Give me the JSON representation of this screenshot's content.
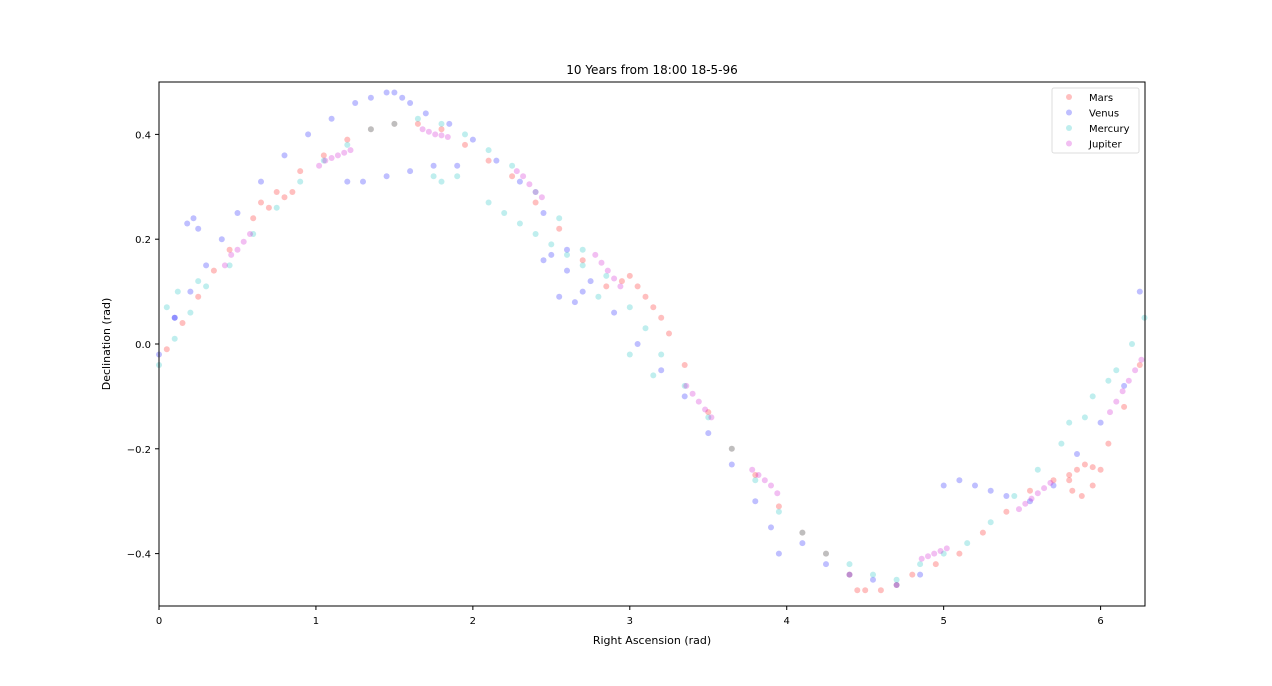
{
  "chart_data": {
    "type": "scatter",
    "title": "10 Years from  18:00 18-5-96",
    "xlabel": "Right Ascension (rad)",
    "ylabel": "Declination (rad)",
    "xlim": [
      0,
      6.283
    ],
    "ylim": [
      -0.5,
      0.5
    ],
    "xticks": [
      0,
      1,
      2,
      3,
      4,
      5,
      6
    ],
    "xtick_labels": [
      "0",
      "1",
      "2",
      "3",
      "4",
      "5",
      "6"
    ],
    "yticks": [
      -0.4,
      -0.2,
      0.0,
      0.2,
      0.4
    ],
    "ytick_labels": [
      "−0.4",
      "−0.2",
      "0.0",
      "0.2",
      "0.4"
    ],
    "grid": false,
    "legend_position": "top-right",
    "series": [
      {
        "name": "Mars",
        "color": "#ff0000",
        "x": [
          0.05,
          0.15,
          0.25,
          0.35,
          0.45,
          0.6,
          0.75,
          0.9,
          1.05,
          1.2,
          1.35,
          1.5,
          1.65,
          1.8,
          1.95,
          2.1,
          2.25,
          2.4,
          2.55,
          2.7,
          2.85,
          2.95,
          3.0,
          3.05,
          3.1,
          3.15,
          3.2,
          3.25,
          3.35,
          3.5,
          3.65,
          3.8,
          3.95,
          4.1,
          4.25,
          4.4,
          4.45,
          4.5,
          4.6,
          4.7,
          4.8,
          4.95,
          5.1,
          5.25,
          5.4,
          5.55,
          5.7,
          5.8,
          5.85,
          5.9,
          5.95,
          6.0,
          5.95,
          5.88,
          5.82,
          5.8,
          6.05,
          6.15,
          6.25,
          0.65,
          0.7,
          0.8,
          0.85
        ],
        "y": [
          -0.01,
          0.04,
          0.09,
          0.14,
          0.18,
          0.24,
          0.29,
          0.33,
          0.36,
          0.39,
          0.41,
          0.42,
          0.42,
          0.41,
          0.38,
          0.35,
          0.32,
          0.27,
          0.22,
          0.16,
          0.11,
          0.12,
          0.13,
          0.11,
          0.09,
          0.07,
          0.05,
          0.02,
          -0.04,
          -0.13,
          -0.2,
          -0.25,
          -0.31,
          -0.36,
          -0.4,
          -0.44,
          -0.47,
          -0.47,
          -0.47,
          -0.46,
          -0.44,
          -0.42,
          -0.4,
          -0.36,
          -0.32,
          -0.28,
          -0.26,
          -0.25,
          -0.24,
          -0.23,
          -0.235,
          -0.24,
          -0.27,
          -0.29,
          -0.28,
          -0.26,
          -0.19,
          -0.12,
          -0.04,
          0.27,
          0.26,
          0.28,
          0.29
        ]
      },
      {
        "name": "Venus",
        "color": "#0000ff",
        "x": [
          0.0,
          0.1,
          0.2,
          0.3,
          0.4,
          0.5,
          0.65,
          0.8,
          0.95,
          1.1,
          1.25,
          1.35,
          1.45,
          1.5,
          1.55,
          1.6,
          1.7,
          1.85,
          2.0,
          2.15,
          2.3,
          2.45,
          2.6,
          2.75,
          2.9,
          3.05,
          3.2,
          3.35,
          3.5,
          3.65,
          3.8,
          3.9,
          3.95,
          4.1,
          4.25,
          4.4,
          4.55,
          4.7,
          4.85,
          5.0,
          5.1,
          5.2,
          5.3,
          5.4,
          5.55,
          5.7,
          5.85,
          6.0,
          6.15,
          6.25,
          2.45,
          2.5,
          2.6,
          2.7,
          2.65,
          2.55,
          1.2,
          1.3,
          1.45,
          1.6,
          1.75,
          1.9,
          0.18,
          0.22,
          0.25,
          0.1
        ],
        "y": [
          -0.02,
          0.05,
          0.1,
          0.15,
          0.2,
          0.25,
          0.31,
          0.36,
          0.4,
          0.43,
          0.46,
          0.47,
          0.48,
          0.48,
          0.47,
          0.46,
          0.44,
          0.42,
          0.39,
          0.35,
          0.31,
          0.25,
          0.18,
          0.12,
          0.06,
          0.0,
          -0.05,
          -0.1,
          -0.17,
          -0.23,
          -0.3,
          -0.35,
          -0.4,
          -0.38,
          -0.42,
          -0.44,
          -0.45,
          -0.46,
          -0.44,
          -0.27,
          -0.26,
          -0.27,
          -0.28,
          -0.29,
          -0.3,
          -0.27,
          -0.21,
          -0.15,
          -0.08,
          0.1,
          0.16,
          0.17,
          0.14,
          0.1,
          0.08,
          0.09,
          0.31,
          0.31,
          0.32,
          0.33,
          0.34,
          0.34,
          0.23,
          0.24,
          0.22,
          0.05
        ]
      },
      {
        "name": "Mercury",
        "color": "#00bbbb",
        "x": [
          0.0,
          0.1,
          0.2,
          0.3,
          0.45,
          0.6,
          0.75,
          0.9,
          1.05,
          1.2,
          1.35,
          1.5,
          1.65,
          1.8,
          1.95,
          2.1,
          2.25,
          2.4,
          2.55,
          2.7,
          2.85,
          3.0,
          3.1,
          3.2,
          3.35,
          3.5,
          3.65,
          3.8,
          3.95,
          4.1,
          4.25,
          4.4,
          4.55,
          4.7,
          4.85,
          5.0,
          5.15,
          5.3,
          5.45,
          5.6,
          5.75,
          5.9,
          6.05,
          6.2,
          6.28,
          2.1,
          2.2,
          2.3,
          2.4,
          2.5,
          2.6,
          2.7,
          2.8,
          3.0,
          3.15,
          1.75,
          1.8,
          1.9,
          0.05,
          0.12,
          0.25,
          5.8,
          5.95,
          6.1
        ],
        "y": [
          -0.04,
          0.01,
          0.06,
          0.11,
          0.15,
          0.21,
          0.26,
          0.31,
          0.35,
          0.38,
          0.41,
          0.42,
          0.43,
          0.42,
          0.4,
          0.37,
          0.34,
          0.29,
          0.24,
          0.18,
          0.13,
          0.07,
          0.03,
          -0.02,
          -0.08,
          -0.14,
          -0.2,
          -0.26,
          -0.32,
          -0.36,
          -0.4,
          -0.42,
          -0.44,
          -0.45,
          -0.42,
          -0.4,
          -0.38,
          -0.34,
          -0.29,
          -0.24,
          -0.19,
          -0.14,
          -0.07,
          0.0,
          0.05,
          0.27,
          0.25,
          0.23,
          0.21,
          0.19,
          0.17,
          0.15,
          0.09,
          -0.02,
          -0.06,
          0.32,
          0.31,
          0.32,
          0.07,
          0.1,
          0.12,
          -0.15,
          -0.1,
          -0.05
        ]
      },
      {
        "name": "Jupiter",
        "color": "#cc00cc",
        "x": [
          0.42,
          0.46,
          0.5,
          0.54,
          0.58,
          1.02,
          1.06,
          1.1,
          1.14,
          1.18,
          1.22,
          1.68,
          1.72,
          1.76,
          1.8,
          1.84,
          2.28,
          2.32,
          2.36,
          2.4,
          2.44,
          2.78,
          2.82,
          2.86,
          2.9,
          2.94,
          3.36,
          3.4,
          3.44,
          3.48,
          3.52,
          3.78,
          3.82,
          3.86,
          3.9,
          3.94,
          4.86,
          4.9,
          4.94,
          4.98,
          5.02,
          5.48,
          5.52,
          5.56,
          5.6,
          5.64,
          5.68,
          6.06,
          6.1,
          6.14,
          6.18,
          6.22,
          6.26
        ],
        "y": [
          0.15,
          0.17,
          0.18,
          0.195,
          0.21,
          0.34,
          0.35,
          0.355,
          0.36,
          0.365,
          0.37,
          0.41,
          0.405,
          0.4,
          0.398,
          0.395,
          0.33,
          0.32,
          0.305,
          0.29,
          0.28,
          0.17,
          0.155,
          0.14,
          0.125,
          0.11,
          -0.08,
          -0.095,
          -0.11,
          -0.125,
          -0.14,
          -0.24,
          -0.25,
          -0.26,
          -0.27,
          -0.285,
          -0.41,
          -0.405,
          -0.4,
          -0.395,
          -0.39,
          -0.315,
          -0.305,
          -0.295,
          -0.285,
          -0.275,
          -0.265,
          -0.13,
          -0.11,
          -0.09,
          -0.07,
          -0.05,
          -0.03
        ]
      }
    ]
  }
}
